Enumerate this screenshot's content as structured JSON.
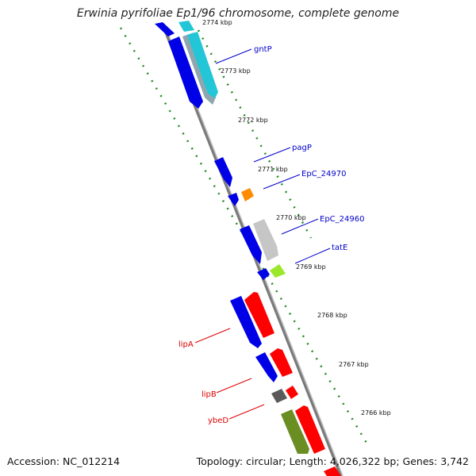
{
  "title": "Erwinia pyrifoliae Ep1/96 chromosome, complete genome",
  "footer": {
    "accession": "Accession: NC_012214",
    "summary": "Topology: circular; Length: 4,026,322 bp; Genes: 3,742"
  },
  "colors": {
    "forward_label": "#0000cc",
    "reverse_label": "#dd0000",
    "scale_dots": "#228b22",
    "backbone": "#808080"
  },
  "scale_ticks": [
    {
      "label": "2774 kbp"
    },
    {
      "label": "2773 kbp"
    },
    {
      "label": "2772 kbp"
    },
    {
      "label": "2771 kbp"
    },
    {
      "label": "2770 kbp"
    },
    {
      "label": "2769 kbp"
    },
    {
      "label": "2768 kbp"
    },
    {
      "label": "2767 kbp"
    },
    {
      "label": "2766 kbp"
    }
  ],
  "gene_labels": [
    {
      "name": "gntP",
      "strand": "forward"
    },
    {
      "name": "pagP",
      "strand": "forward"
    },
    {
      "name": "EpC_24970",
      "strand": "forward"
    },
    {
      "name": "EpC_24960",
      "strand": "forward"
    },
    {
      "name": "tatE",
      "strand": "forward"
    },
    {
      "name": "lipA",
      "strand": "reverse"
    },
    {
      "name": "lipB",
      "strand": "reverse"
    },
    {
      "name": "ybeD",
      "strand": "reverse"
    }
  ]
}
